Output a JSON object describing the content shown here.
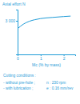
{
  "chart_data": {
    "type": "line",
    "y_label": "Axial effort N",
    "x_label": "Mc (% by mass)",
    "x": [
      0,
      0.25,
      0.5,
      0.75,
      1,
      1.5,
      2,
      2.3
    ],
    "values": [
      2300,
      2700,
      2950,
      3100,
      3200,
      3300,
      3380,
      3420
    ],
    "color": "#1f9bd7",
    "xlim": [
      0,
      2.5
    ],
    "xticks": [
      0,
      1,
      2
    ],
    "ylim": [
      0,
      4000
    ],
    "yticks": [
      {
        "value": 3000,
        "label": "3 000"
      }
    ],
    "grid": false,
    "annotations": [
      "Cutting conditions :",
      "- without pre-hole ;",
      "- with lubrication ;",
      "n : 230 rpm",
      "e : 0.16 mm/rev"
    ]
  }
}
